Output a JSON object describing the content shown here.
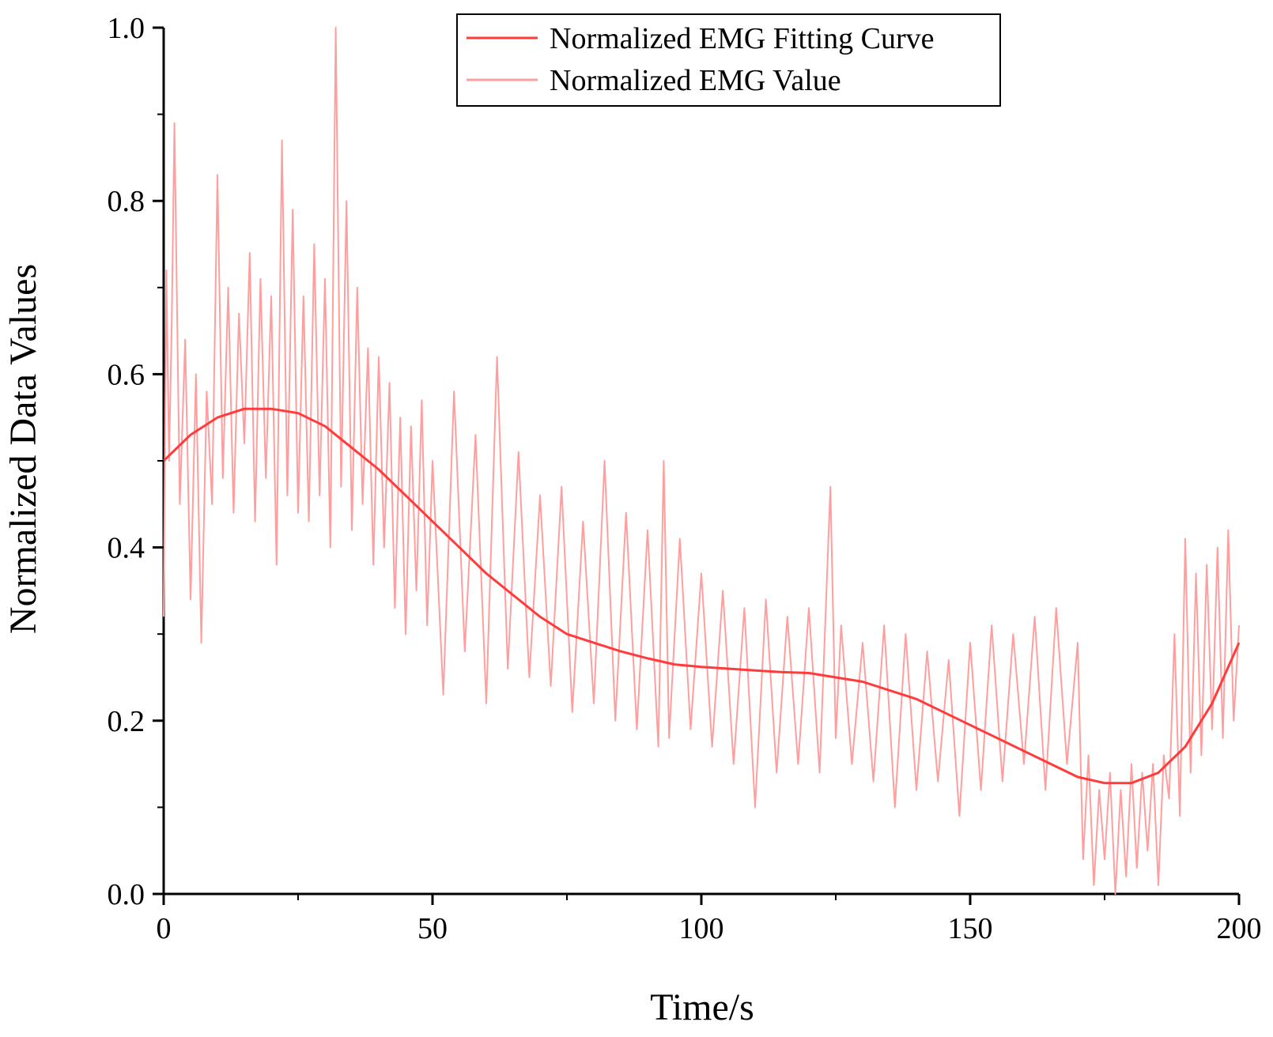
{
  "chart_data": {
    "type": "line",
    "title": "",
    "xlabel": "Time/s",
    "ylabel": "Normalized Data Values",
    "xlim": [
      0,
      200
    ],
    "ylim": [
      0,
      1.0
    ],
    "x_ticks": [
      0,
      50,
      100,
      150,
      200
    ],
    "x_tick_labels": [
      "0",
      "50",
      "100",
      "150",
      "200"
    ],
    "y_ticks": [
      0,
      0.2,
      0.4,
      0.6,
      0.8,
      1.0
    ],
    "y_tick_labels": [
      "0.0",
      "0.2",
      "0.4",
      "0.6",
      "0.8",
      "1.0"
    ],
    "grid": false,
    "legend_position": "top-center",
    "series": [
      {
        "name": "Normalized EMG Fitting Curve",
        "color": "#ff3b3b",
        "x": [
          0,
          5,
          10,
          15,
          20,
          25,
          30,
          35,
          40,
          45,
          50,
          55,
          60,
          65,
          70,
          75,
          80,
          85,
          90,
          95,
          100,
          105,
          110,
          115,
          120,
          125,
          130,
          135,
          140,
          145,
          150,
          155,
          160,
          165,
          170,
          175,
          180,
          185,
          190,
          195,
          200
        ],
        "values": [
          0.5,
          0.53,
          0.55,
          0.56,
          0.56,
          0.555,
          0.54,
          0.515,
          0.49,
          0.46,
          0.43,
          0.4,
          0.37,
          0.345,
          0.32,
          0.3,
          0.29,
          0.28,
          0.272,
          0.265,
          0.262,
          0.26,
          0.258,
          0.256,
          0.255,
          0.25,
          0.245,
          0.235,
          0.225,
          0.21,
          0.195,
          0.18,
          0.165,
          0.15,
          0.135,
          0.128,
          0.128,
          0.14,
          0.17,
          0.22,
          0.29
        ]
      },
      {
        "name": "Normalized EMG Value",
        "color": "#ff9e9e",
        "x": [
          0,
          0.5,
          1,
          1.5,
          2,
          3,
          4,
          5,
          6,
          7,
          8,
          9,
          10,
          11,
          12,
          13,
          14,
          15,
          16,
          17,
          18,
          19,
          20,
          21,
          22,
          23,
          24,
          25,
          26,
          27,
          28,
          29,
          30,
          31,
          32,
          33,
          34,
          35,
          36,
          37,
          38,
          39,
          40,
          41,
          42,
          43,
          44,
          45,
          46,
          47,
          48,
          49,
          50,
          52,
          54,
          56,
          58,
          60,
          62,
          64,
          66,
          68,
          70,
          72,
          74,
          76,
          78,
          80,
          82,
          84,
          86,
          88,
          90,
          92,
          93,
          94,
          96,
          98,
          100,
          102,
          104,
          106,
          108,
          110,
          112,
          114,
          116,
          118,
          120,
          122,
          124,
          125,
          126,
          128,
          130,
          132,
          134,
          136,
          138,
          140,
          142,
          144,
          146,
          148,
          150,
          152,
          154,
          156,
          158,
          160,
          162,
          164,
          166,
          168,
          170,
          171,
          172,
          173,
          174,
          175,
          176,
          177,
          178,
          179,
          180,
          181,
          182,
          183,
          184,
          185,
          186,
          187,
          188,
          189,
          190,
          191,
          192,
          193,
          194,
          195,
          196,
          197,
          198,
          199,
          200
        ],
        "values": [
          0.32,
          0.72,
          0.5,
          0.66,
          0.89,
          0.45,
          0.64,
          0.34,
          0.6,
          0.29,
          0.58,
          0.45,
          0.83,
          0.48,
          0.7,
          0.44,
          0.67,
          0.52,
          0.74,
          0.43,
          0.71,
          0.48,
          0.69,
          0.38,
          0.87,
          0.46,
          0.79,
          0.44,
          0.69,
          0.43,
          0.75,
          0.46,
          0.71,
          0.4,
          1.0,
          0.47,
          0.8,
          0.42,
          0.7,
          0.45,
          0.63,
          0.38,
          0.62,
          0.4,
          0.59,
          0.33,
          0.55,
          0.3,
          0.54,
          0.35,
          0.57,
          0.31,
          0.5,
          0.23,
          0.58,
          0.28,
          0.53,
          0.22,
          0.62,
          0.26,
          0.51,
          0.25,
          0.46,
          0.24,
          0.47,
          0.21,
          0.43,
          0.22,
          0.5,
          0.2,
          0.44,
          0.19,
          0.42,
          0.17,
          0.5,
          0.18,
          0.41,
          0.19,
          0.37,
          0.17,
          0.35,
          0.15,
          0.33,
          0.1,
          0.34,
          0.14,
          0.32,
          0.15,
          0.33,
          0.14,
          0.47,
          0.18,
          0.31,
          0.15,
          0.29,
          0.13,
          0.31,
          0.1,
          0.3,
          0.12,
          0.28,
          0.13,
          0.27,
          0.09,
          0.29,
          0.12,
          0.31,
          0.13,
          0.3,
          0.15,
          0.32,
          0.12,
          0.33,
          0.15,
          0.29,
          0.04,
          0.16,
          0.01,
          0.12,
          0.04,
          0.14,
          0.0,
          0.12,
          0.02,
          0.15,
          0.03,
          0.14,
          0.05,
          0.15,
          0.01,
          0.16,
          0.11,
          0.3,
          0.09,
          0.41,
          0.14,
          0.37,
          0.16,
          0.38,
          0.19,
          0.4,
          0.18,
          0.42,
          0.2,
          0.31
        ]
      }
    ]
  }
}
